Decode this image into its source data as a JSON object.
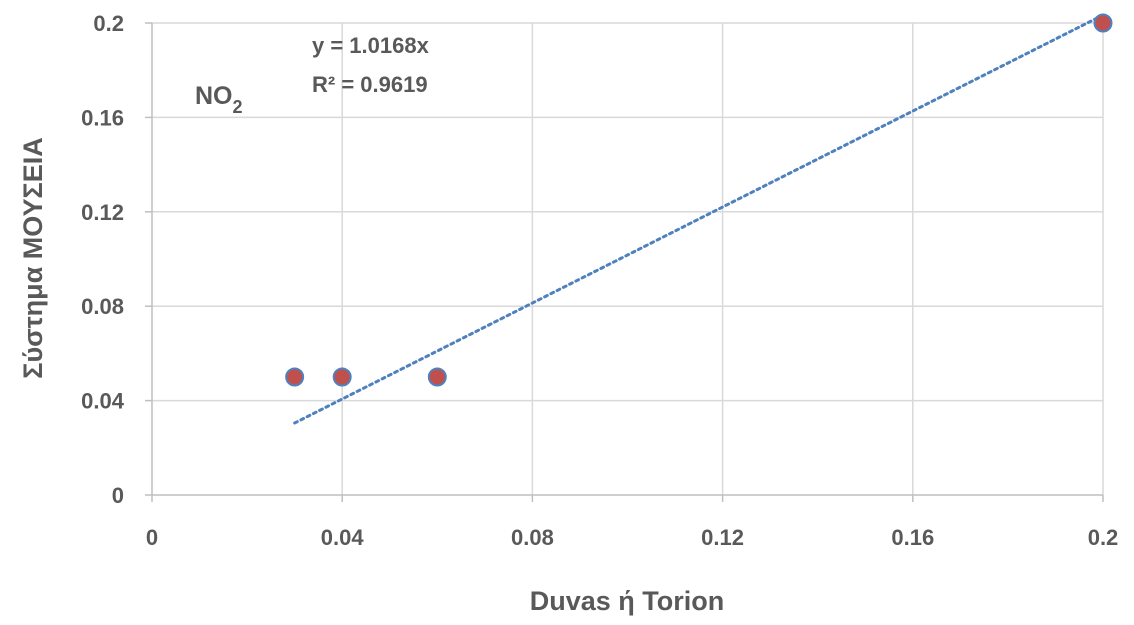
{
  "chart_data": {
    "type": "scatter",
    "title": "",
    "xlabel": "Duvas ή Torion",
    "ylabel": "Σύστημα ΜΟΥΣΕΙΑ",
    "xlim": [
      0,
      0.2
    ],
    "ylim": [
      0,
      0.2
    ],
    "x_ticks": [
      "0",
      "0.04",
      "0.08",
      "0.12",
      "0.16",
      "0.2"
    ],
    "y_ticks": [
      "0",
      "0.04",
      "0.08",
      "0.12",
      "0.16",
      "0.2"
    ],
    "grid": true,
    "legend": "none",
    "series": [
      {
        "x": [
          0.03,
          0.04,
          0.06,
          0.2
        ],
        "y": [
          0.05,
          0.05,
          0.05,
          0.2
        ],
        "marker_fill": "#C0504D",
        "marker_edge": "#4F81BD"
      }
    ],
    "trendline": {
      "type": "linear-through-origin",
      "slope": 1.0168,
      "x_range": [
        0.03,
        0.2
      ],
      "color": "#4F81BD",
      "style": "dotted",
      "equation": "y = 1.0168x",
      "r_squared": "R² = 0.9619"
    },
    "annotation": {
      "base": "NO",
      "subscript": "2"
    }
  }
}
